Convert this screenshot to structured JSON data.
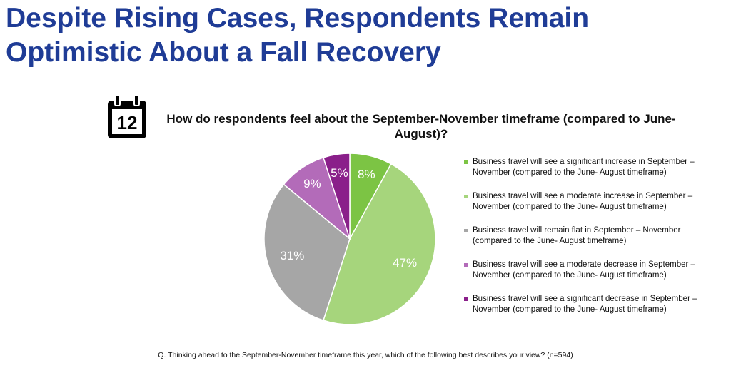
{
  "page_title": "Despite Rising Cases, Respondents Remain Optimistic About a Fall Recovery",
  "icon": {
    "name": "calendar-icon",
    "label": "12"
  },
  "chart_data": {
    "type": "pie",
    "title": "How do respondents feel about the September-November timeframe (compared to June-August)?",
    "slices": [
      {
        "label": "Business travel will see a significant increase in September – November (compared to the June- August timeframe)",
        "value": 8,
        "value_label": "8%",
        "color": "#7cc444"
      },
      {
        "label": "Business travel will see a moderate increase in September – November (compared to the June- August timeframe)",
        "value": 47,
        "value_label": "47%",
        "color": "#a6d57c"
      },
      {
        "label": "Business travel will remain flat in September – November (compared to the June- August timeframe)",
        "value": 31,
        "value_label": "31%",
        "color": "#a6a6a6"
      },
      {
        "label": "Business travel will see a moderate decrease in September – November (compared to the June- August timeframe)",
        "value": 9,
        "value_label": "9%",
        "color": "#b36bb9"
      },
      {
        "label": "Business travel will see a significant decrease in September – November (compared to the June- August timeframe)",
        "value": 5,
        "value_label": "5%",
        "color": "#8a1f8a"
      }
    ],
    "legend_position": "right"
  },
  "footnote": "Q. Thinking ahead to the September-November timeframe this year, which of the following best describes your view? (n=594)"
}
